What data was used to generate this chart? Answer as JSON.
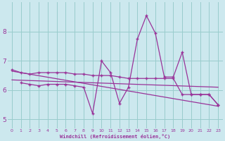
{
  "bg_color": "#cce8ee",
  "line_color": "#993399",
  "grid_color": "#99cccc",
  "xlabel": "Windchill (Refroidissement éolien,°C)",
  "xlabel_color": "#993399",
  "ylabel_values": [
    5,
    6,
    7,
    8
  ],
  "xlim": [
    -0.5,
    23.5
  ],
  "ylim": [
    4.7,
    9.0
  ],
  "s1x": [
    0,
    1,
    2,
    3,
    4,
    5,
    6,
    7,
    8,
    9,
    10,
    11,
    12,
    13,
    14,
    15,
    16,
    17,
    18,
    19,
    20,
    21,
    22,
    23
  ],
  "s1y": [
    6.7,
    6.6,
    6.55,
    6.6,
    6.6,
    6.6,
    6.6,
    6.55,
    6.55,
    6.5,
    6.5,
    6.5,
    6.45,
    6.4,
    6.4,
    6.4,
    6.4,
    6.4,
    6.4,
    5.85,
    5.85,
    5.85,
    5.85,
    5.5
  ],
  "s2x": [
    1,
    2,
    3,
    4,
    5,
    6,
    7,
    8,
    9,
    10,
    11,
    12,
    13,
    14,
    15,
    16,
    17,
    18,
    19,
    20,
    21,
    22,
    23
  ],
  "s2y": [
    6.25,
    6.2,
    6.15,
    6.2,
    6.2,
    6.2,
    6.15,
    6.1,
    5.2,
    7.0,
    6.6,
    5.55,
    6.1,
    7.75,
    8.55,
    7.95,
    6.45,
    6.45,
    7.3,
    5.85,
    5.85,
    5.85,
    5.5
  ],
  "r1x": [
    0,
    23
  ],
  "r1y": [
    6.65,
    5.45
  ],
  "r2x": [
    0,
    23
  ],
  "r2y": [
    6.35,
    6.1
  ]
}
